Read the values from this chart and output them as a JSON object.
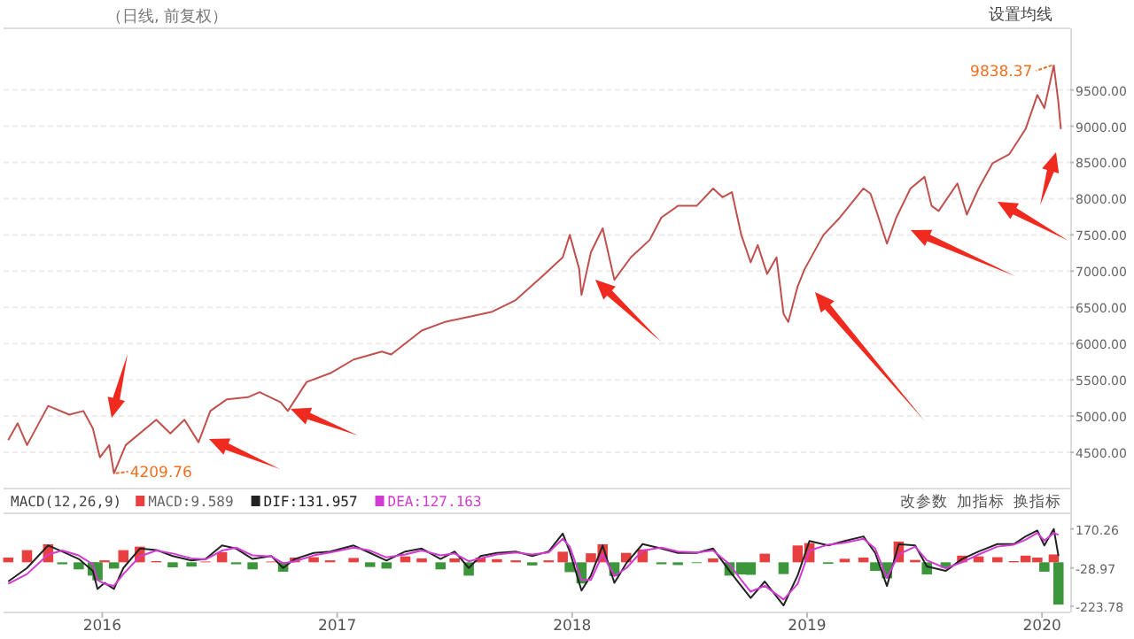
{
  "chart_data": [
    {
      "type": "line",
      "title": "（日线, 前复权）",
      "color": "#c0504d",
      "xlim": [
        2015.58,
        2020.12
      ],
      "ylim": [
        4000,
        10350
      ],
      "grid": "y",
      "tick_labels": "y",
      "yticks": [
        {
          "value": 4500,
          "label": "4500.00"
        },
        {
          "value": 5000,
          "label": "5000.00"
        },
        {
          "value": 5500,
          "label": "5500.00"
        },
        {
          "value": 6000,
          "label": "6000.00"
        },
        {
          "value": 6500,
          "label": "6500.00"
        },
        {
          "value": 7000,
          "label": "7000.00"
        },
        {
          "value": 7500,
          "label": "7500.00"
        },
        {
          "value": 8000,
          "label": "8000.00"
        },
        {
          "value": 8500,
          "label": "8500.00"
        },
        {
          "value": 9000,
          "label": "9000.00"
        },
        {
          "value": 9500,
          "label": "9500.00"
        }
      ],
      "x": [
        2015.6,
        2015.64,
        2015.68,
        2015.77,
        2015.86,
        2015.92,
        2015.96,
        2015.99,
        2016.03,
        2016.05,
        2016.1,
        2016.23,
        2016.29,
        2016.35,
        2016.41,
        2016.46,
        2016.53,
        2016.62,
        2016.67,
        2016.76,
        2016.79,
        2016.87,
        2016.97,
        2017.07,
        2017.19,
        2017.23,
        2017.36,
        2017.46,
        2017.56,
        2017.66,
        2017.76,
        2017.88,
        2017.96,
        2017.99,
        2018.03,
        2018.04,
        2018.08,
        2018.13,
        2018.18,
        2018.25,
        2018.33,
        2018.38,
        2018.45,
        2018.53,
        2018.6,
        2018.64,
        2018.68,
        2018.72,
        2018.76,
        2018.79,
        2018.83,
        2018.87,
        2018.9,
        2018.92,
        2018.96,
        2018.99,
        2019.07,
        2019.14,
        2019.24,
        2019.27,
        2019.3,
        2019.34,
        2019.38,
        2019.44,
        2019.5,
        2019.53,
        2019.56,
        2019.64,
        2019.68,
        2019.73,
        2019.79,
        2019.86,
        2019.93,
        2019.98,
        2020.01,
        2020.05,
        2020.07,
        2020.08
      ],
      "values": [
        4670,
        4900,
        4600,
        5140,
        5020,
        5070,
        4830,
        4430,
        4600,
        4209.76,
        4600,
        4950,
        4760,
        4950,
        4640,
        5070,
        5230,
        5260,
        5330,
        5190,
        5070,
        5470,
        5590,
        5780,
        5890,
        5850,
        6180,
        6300,
        6370,
        6440,
        6600,
        6950,
        7190,
        7500,
        7030,
        6670,
        7260,
        7590,
        6880,
        7190,
        7430,
        7740,
        7900,
        7900,
        8140,
        8020,
        8090,
        7500,
        7120,
        7360,
        6960,
        7190,
        6410,
        6300,
        6790,
        7030,
        7500,
        7740,
        8140,
        8070,
        7780,
        7380,
        7740,
        8140,
        8300,
        7900,
        7830,
        8210,
        7780,
        8140,
        8490,
        8610,
        8960,
        9430,
        9250,
        9838.37,
        9320,
        8960
      ],
      "annotations": [
        "设置均线",
        {
          "text": "4209.76",
          "x": 2016.05,
          "y": 4209.76
        },
        {
          "text": "9838.37",
          "x": 2020.05,
          "y": 9838.37
        }
      ]
    },
    {
      "type": "bar",
      "title": "MACD(12,26,9)",
      "legend": "top left",
      "xlim": [
        2015.58,
        2020.12
      ],
      "ylim": [
        -256,
        250
      ],
      "xticks": [
        2016,
        2017,
        2018,
        2019,
        2020
      ],
      "yticks": [
        170.26,
        -28.97,
        -223.78
      ],
      "x": [
        2015.6,
        2015.68,
        2015.77,
        2015.83,
        2015.9,
        2015.96,
        2015.98,
        2016.01,
        2016.05,
        2016.09,
        2016.16,
        2016.23,
        2016.3,
        2016.38,
        2016.44,
        2016.51,
        2016.57,
        2016.64,
        2016.72,
        2016.77,
        2016.82,
        2016.9,
        2016.97,
        2017.07,
        2017.14,
        2017.21,
        2017.29,
        2017.36,
        2017.44,
        2017.5,
        2017.56,
        2017.61,
        2017.68,
        2017.76,
        2017.83,
        2017.9,
        2017.96,
        2017.99,
        2018.04,
        2018.08,
        2018.13,
        2018.18,
        2018.23,
        2018.3,
        2018.38,
        2018.45,
        2018.53,
        2018.6,
        2018.67,
        2018.72,
        2018.76,
        2018.82,
        2018.9,
        2018.96,
        2019.01,
        2019.09,
        2019.16,
        2019.24,
        2019.29,
        2019.34,
        2019.39,
        2019.46,
        2019.51,
        2019.59,
        2019.66,
        2019.73,
        2019.81,
        2019.88,
        2019.93,
        2019.98,
        2020.01,
        2020.05,
        2020.07
      ],
      "series": [
        {
          "name": "MACD:9.589",
          "type": "bar",
          "values": [
            24,
            62,
            92,
            -10,
            -36,
            -68,
            -92,
            10,
            -32,
            62,
            80,
            6,
            -26,
            -22,
            4,
            52,
            -10,
            -36,
            4,
            -48,
            24,
            26,
            10,
            22,
            -24,
            -32,
            30,
            20,
            -36,
            20,
            -68,
            24,
            16,
            10,
            -16,
            10,
            54,
            -50,
            -108,
            46,
            92,
            -70,
            48,
            66,
            -10,
            -14,
            -4,
            20,
            -68,
            -62,
            -64,
            44,
            -60,
            86,
            98,
            -8,
            18,
            24,
            -44,
            -82,
            106,
            12,
            -62,
            -28,
            34,
            30,
            26,
            6,
            34,
            24,
            -48,
            40,
            -216
          ],
          "colors": [
            "#e84040",
            "#e84040",
            "#e84040",
            "#3c963c",
            "#3c963c",
            "#3c963c",
            "#3c963c",
            "#e84040",
            "#3c963c",
            "#e84040",
            "#e84040",
            "#e84040",
            "#3c963c",
            "#3c963c",
            "#e84040",
            "#e84040",
            "#3c963c",
            "#3c963c",
            "#e84040",
            "#3c963c",
            "#e84040",
            "#e84040",
            "#e84040",
            "#e84040",
            "#3c963c",
            "#3c963c",
            "#e84040",
            "#e84040",
            "#3c963c",
            "#e84040",
            "#3c963c",
            "#e84040",
            "#e84040",
            "#e84040",
            "#3c963c",
            "#e84040",
            "#e84040",
            "#3c963c",
            "#3c963c",
            "#e84040",
            "#e84040",
            "#3c963c",
            "#e84040",
            "#e84040",
            "#3c963c",
            "#3c963c",
            "#3c963c",
            "#e84040",
            "#3c963c",
            "#3c963c",
            "#3c963c",
            "#e84040",
            "#3c963c",
            "#e84040",
            "#e84040",
            "#3c963c",
            "#e84040",
            "#e84040",
            "#3c963c",
            "#3c963c",
            "#e84040",
            "#e84040",
            "#3c963c",
            "#3c963c",
            "#e84040",
            "#e84040",
            "#e84040",
            "#e84040",
            "#e84040",
            "#e84040",
            "#3c963c",
            "#e84040",
            "#3c963c"
          ]
        },
        {
          "name": "DIF:131.957",
          "type": "line",
          "color": "#222222",
          "values": [
            -98,
            -29,
            86,
            55,
            17,
            -44,
            -136,
            -105,
            -136,
            -29,
            70,
            63,
            32,
            9,
            17,
            86,
            70,
            17,
            32,
            -29,
            17,
            48,
            55,
            86,
            48,
            9,
            55,
            70,
            17,
            55,
            -29,
            32,
            48,
            55,
            32,
            55,
            147,
            55,
            -144,
            -67,
            86,
            -105,
            -6,
            93,
            70,
            48,
            48,
            70,
            -44,
            -121,
            -182,
            -98,
            -220,
            -67,
            109,
            86,
            109,
            132,
            48,
            -121,
            93,
            86,
            -21,
            -44,
            17,
            55,
            93,
            93,
            132,
            162,
            86,
            170,
            32
          ]
        },
        {
          "name": "DEA:127.163",
          "type": "line",
          "color": "#d23ad2",
          "values": [
            -110,
            -60,
            40,
            60,
            35,
            -10,
            -90,
            -110,
            -120,
            -60,
            30,
            60,
            45,
            20,
            15,
            60,
            75,
            35,
            30,
            -5,
            5,
            35,
            50,
            75,
            60,
            25,
            40,
            60,
            35,
            45,
            5,
            20,
            40,
            50,
            40,
            50,
            120,
            80,
            -90,
            -90,
            40,
            -70,
            -30,
            60,
            75,
            55,
            50,
            60,
            -10,
            -90,
            -150,
            -120,
            -190,
            -110,
            60,
            90,
            100,
            120,
            70,
            -80,
            40,
            80,
            10,
            -30,
            0,
            40,
            80,
            90,
            115,
            150,
            110,
            150,
            140
          ]
        }
      ],
      "annotations": [
        "改参数",
        "加指标",
        "换指标"
      ]
    }
  ]
}
